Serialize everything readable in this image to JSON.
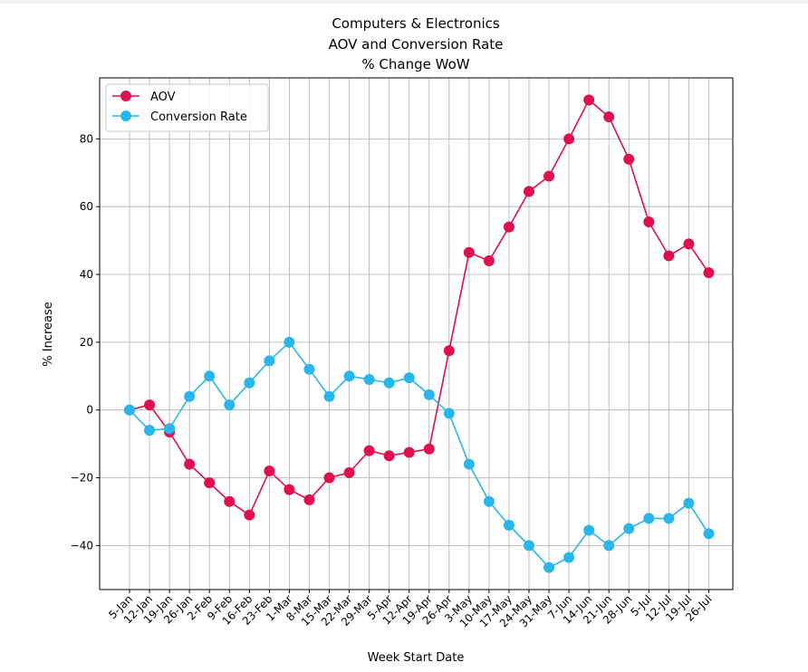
{
  "chart_data": {
    "type": "line",
    "title": [
      "Computers & Electronics",
      "AOV and Conversion Rate",
      "% Change WoW"
    ],
    "xlabel": "Week Start Date",
    "ylabel": "% Increase",
    "ylim": [
      -53,
      98
    ],
    "yticks": [
      -40,
      -20,
      0,
      20,
      40,
      60,
      80
    ],
    "grid": true,
    "legend_position": "top-left",
    "categories": [
      "5-Jan",
      "12-Jan",
      "19-Jan",
      "26-Jan",
      "2-Feb",
      "9-Feb",
      "16-Feb",
      "23-Feb",
      "1-Mar",
      "8-Mar",
      "15-Mar",
      "22-Mar",
      "29-Mar",
      "5-Apr",
      "12-Apr",
      "19-Apr",
      "26-Apr",
      "3-May",
      "10-May",
      "17-May",
      "24-May",
      "31-May",
      "7-Jun",
      "14-Jun",
      "21-Jun",
      "28-Jun",
      "5-Jul",
      "12-Jul",
      "19-Jul",
      "26-Jul"
    ],
    "series": [
      {
        "name": "AOV",
        "color": "#e0104f",
        "values": [
          0,
          1.5,
          -6.5,
          -16,
          -21.5,
          -27,
          -31,
          -18,
          -23.5,
          -26.5,
          -20,
          -18.5,
          -12,
          -13.5,
          -12.5,
          -11.5,
          17.5,
          46.5,
          44,
          54,
          64.5,
          69,
          80,
          91.5,
          86.5,
          74,
          55.5,
          45.5,
          49,
          40.5
        ]
      },
      {
        "name": "Conversion Rate",
        "color": "#29b6ea",
        "values": [
          0,
          -6,
          -5.5,
          4,
          10,
          1.5,
          8,
          14.5,
          20,
          12,
          4,
          10,
          9,
          8,
          9.5,
          4.5,
          -1,
          -16,
          -27,
          -34,
          -40,
          -46.5,
          -43.5,
          -35.5,
          -40,
          -35,
          -32,
          -32,
          -27.5,
          -36.5
        ]
      }
    ]
  }
}
